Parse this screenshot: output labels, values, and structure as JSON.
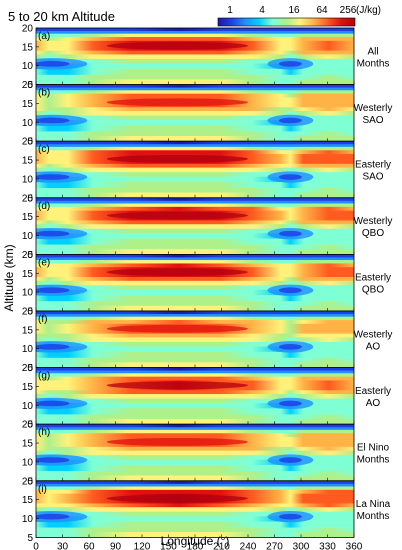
{
  "figure": {
    "title": "5 to 20 km Altitude",
    "ylabel": "Altitude (km)",
    "xlabel": "Longitude (°)"
  },
  "colorbar": {
    "ticks": [
      "1",
      "4",
      "16",
      "64",
      "256"
    ],
    "unit": "(J/kg)",
    "scale": "log2",
    "range": [
      1,
      256
    ],
    "colors": [
      "#1a1aa8",
      "#1f3fe6",
      "#1e90ff",
      "#00cfff",
      "#7fffd4",
      "#aef08a",
      "#fff27a",
      "#ffb347",
      "#ff5a1f",
      "#e01010",
      "#b00010"
    ]
  },
  "chart_data": {
    "type": "heatmap",
    "panel_count": 9,
    "x": {
      "label": "Longitude (°)",
      "lim": [
        0,
        360
      ],
      "ticks": [
        0,
        30,
        60,
        90,
        120,
        150,
        180,
        210,
        240,
        270,
        300,
        330,
        360
      ]
    },
    "y": {
      "label": "Altitude (km)",
      "lim": [
        5,
        20
      ],
      "ticks": [
        5,
        10,
        15,
        20
      ]
    },
    "panels": [
      {
        "tag": "(a)",
        "label_line1": "All",
        "label_line2": "Months",
        "core_level": 0.85
      },
      {
        "tag": "(b)",
        "label_line1": "Westerly",
        "label_line2": "SAO",
        "core_level": 0.8
      },
      {
        "tag": "(c)",
        "label_line1": "Easterly",
        "label_line2": "SAO",
        "core_level": 0.9
      },
      {
        "tag": "(d)",
        "label_line1": "Westerly",
        "label_line2": "QBO",
        "core_level": 0.88
      },
      {
        "tag": "(e)",
        "label_line1": "Easterly",
        "label_line2": "QBO",
        "core_level": 0.86
      },
      {
        "tag": "(f)",
        "label_line1": "Westerly",
        "label_line2": "AO",
        "core_level": 0.78
      },
      {
        "tag": "(g)",
        "label_line1": "Easterly",
        "label_line2": "AO",
        "core_level": 0.84
      },
      {
        "tag": "(h)",
        "label_line1": "El Nino",
        "label_line2": "Months",
        "core_level": 0.8
      },
      {
        "tag": "(i)",
        "label_line1": "La Nina",
        "label_line2": "Months",
        "core_level": 0.92
      }
    ]
  }
}
